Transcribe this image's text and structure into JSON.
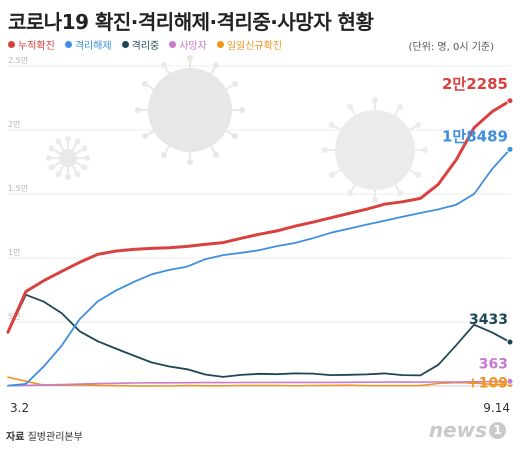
{
  "title": "코로나19 확진·격리해제·격리중·사망자 현황",
  "unit_note": "(단위: 명, 0시 기준)",
  "source": {
    "label": "자료",
    "text": "질병관리본부"
  },
  "logo_text": "news",
  "logo_badge": "1",
  "chart_data": {
    "type": "line",
    "title": "코로나19 확진·격리해제·격리중·사망자 현황",
    "xlabel": "",
    "ylabel": "",
    "x_start_label": "3.2",
    "x_end_label": "9.14",
    "ylim": [
      0,
      25000
    ],
    "y_ticks": [
      {
        "value": 5000,
        "label": "5천"
      },
      {
        "value": 10000,
        "label": "1만"
      },
      {
        "value": 15000,
        "label": "1.5만"
      },
      {
        "value": 20000,
        "label": "2만"
      },
      {
        "value": 25000,
        "label": "2.5만"
      }
    ],
    "grid": true,
    "legend_position": "top-left",
    "x": [
      "3.2",
      "3.9",
      "3.16",
      "3.23",
      "3.30",
      "4.6",
      "4.13",
      "4.20",
      "4.27",
      "5.4",
      "5.11",
      "5.18",
      "5.25",
      "6.1",
      "6.8",
      "6.15",
      "6.22",
      "6.29",
      "7.6",
      "7.13",
      "7.20",
      "7.27",
      "8.3",
      "8.10",
      "8.17",
      "8.24",
      "8.31",
      "9.7",
      "9.14"
    ],
    "series": [
      {
        "name": "누적확진",
        "color": "#d9413f",
        "values": [
          4212,
          7382,
          8236,
          8961,
          9661,
          10284,
          10537,
          10674,
          10752,
          10804,
          10909,
          11065,
          11206,
          11541,
          11852,
          12121,
          12484,
          12800,
          13137,
          13479,
          13816,
          14203,
          14389,
          14660,
          15761,
          17665,
          20182,
          21431,
          22285
        ],
        "end_label": "2만2285"
      },
      {
        "name": "격리해제",
        "color": "#3f8fde",
        "values": [
          27,
          166,
          1540,
          3166,
          5228,
          6598,
          7447,
          8114,
          8717,
          9072,
          9332,
          9904,
          10226,
          10405,
          10611,
          10930,
          11172,
          11537,
          11970,
          12282,
          12611,
          12905,
          13223,
          13516,
          13799,
          14162,
          14999,
          16956,
          18489
        ],
        "end_label": "1만8489"
      },
      {
        "name": "격리중",
        "color": "#1e4656",
        "values": [
          4153,
          7122,
          6584,
          5684,
          4275,
          3500,
          2930,
          2385,
          1843,
          1527,
          1307,
          898,
          713,
          867,
          956,
          920,
          984,
          966,
          852,
          877,
          907,
          987,
          855,
          829,
          1654,
          3186,
          4791,
          4186,
          3433
        ],
        "end_label": "3433"
      },
      {
        "name": "사망자",
        "color": "#c77ad0",
        "values": [
          22,
          50,
          84,
          111,
          158,
          186,
          214,
          236,
          248,
          252,
          256,
          263,
          267,
          272,
          276,
          279,
          282,
          283,
          285,
          289,
          296,
          301,
          301,
          305,
          309,
          312,
          326,
          334,
          363
        ],
        "end_label": "363"
      },
      {
        "name": "일일신규확진",
        "color": "#f0961e",
        "values": [
          686,
          367,
          74,
          64,
          78,
          47,
          25,
          9,
          10,
          3,
          35,
          15,
          16,
          38,
          38,
          37,
          17,
          42,
          48,
          62,
          26,
          25,
          23,
          34,
          197,
          266,
          235,
          119,
          109
        ],
        "end_label": "+109"
      }
    ]
  }
}
